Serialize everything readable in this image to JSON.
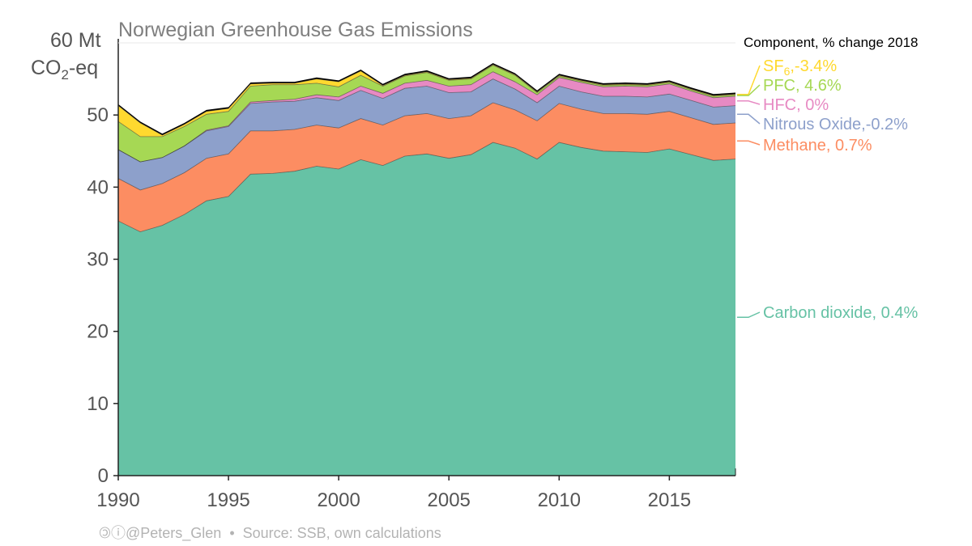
{
  "chart_data": {
    "type": "area",
    "stacked": true,
    "title": "Norwegian Greenhouse Gas Emissions",
    "ylabel_line1": "60 Mt",
    "ylabel_line2_main": "CO",
    "ylabel_line2_sub": "2",
    "ylabel_line2_end": "-eq",
    "ylim": [
      0,
      60
    ],
    "yticks": [
      "0",
      "10",
      "20",
      "30",
      "40",
      "50"
    ],
    "xlim": [
      1990,
      2018
    ],
    "xticks": [
      "1990",
      "1995",
      "2000",
      "2005",
      "2010",
      "2015"
    ],
    "x": [
      1990,
      1991,
      1992,
      1993,
      1994,
      1995,
      1996,
      1997,
      1998,
      1999,
      2000,
      2001,
      2002,
      2003,
      2004,
      2005,
      2006,
      2007,
      2008,
      2009,
      2010,
      2011,
      2012,
      2013,
      2014,
      2015,
      2016,
      2017,
      2018
    ],
    "series": [
      {
        "key": "co2",
        "name": "Carbon dioxide",
        "color": "#66c2a5",
        "values": [
          35.3,
          33.8,
          34.7,
          36.2,
          38.1,
          38.7,
          41.8,
          41.9,
          42.2,
          42.9,
          42.5,
          43.8,
          43.0,
          44.3,
          44.6,
          44.0,
          44.5,
          46.2,
          45.4,
          43.9,
          46.2,
          45.5,
          45.0,
          44.9,
          44.8,
          45.3,
          44.5,
          43.7,
          43.9
        ]
      },
      {
        "key": "ch4",
        "name": "Methane",
        "color": "#fc8d62",
        "values": [
          5.9,
          5.8,
          5.8,
          5.8,
          5.9,
          5.9,
          6.0,
          5.9,
          5.8,
          5.7,
          5.7,
          5.7,
          5.6,
          5.6,
          5.6,
          5.5,
          5.4,
          5.5,
          5.3,
          5.3,
          5.4,
          5.3,
          5.2,
          5.3,
          5.3,
          5.2,
          5.1,
          5.0,
          5.0
        ]
      },
      {
        "key": "n2o",
        "name": "Nitrous Oxide",
        "color": "#8da0cb",
        "values": [
          4.0,
          3.9,
          3.6,
          3.7,
          3.8,
          3.8,
          3.8,
          4.0,
          3.9,
          3.8,
          3.8,
          3.9,
          3.7,
          3.8,
          3.8,
          3.6,
          3.3,
          3.3,
          2.9,
          2.5,
          2.4,
          2.4,
          2.4,
          2.4,
          2.4,
          2.4,
          2.4,
          2.4,
          2.4
        ]
      },
      {
        "key": "hfc",
        "name": "HFC",
        "color": "#e78ac3",
        "values": [
          0.0,
          0.0,
          0.0,
          0.0,
          0.1,
          0.1,
          0.2,
          0.2,
          0.3,
          0.4,
          0.5,
          0.6,
          0.7,
          0.7,
          0.8,
          0.9,
          1.0,
          1.0,
          1.0,
          1.1,
          1.2,
          1.3,
          1.3,
          1.4,
          1.4,
          1.4,
          1.3,
          1.3,
          1.3
        ]
      },
      {
        "key": "pfc",
        "name": "PFC",
        "color": "#a6d854",
        "values": [
          3.9,
          3.5,
          2.9,
          2.7,
          2.2,
          2.0,
          2.2,
          2.2,
          2.0,
          1.6,
          1.4,
          1.5,
          1.0,
          1.0,
          1.1,
          0.8,
          0.8,
          0.9,
          0.9,
          0.3,
          0.2,
          0.2,
          0.2,
          0.2,
          0.2,
          0.2,
          0.2,
          0.2,
          0.2
        ]
      },
      {
        "key": "sf6",
        "name": "SF",
        "name_sub": "6",
        "color": "#ffd92f",
        "values": [
          2.2,
          1.9,
          0.2,
          0.3,
          0.4,
          0.4,
          0.3,
          0.2,
          0.2,
          0.6,
          0.7,
          0.6,
          0.1,
          0.1,
          0.1,
          0.1,
          0.1,
          0.1,
          0.1,
          0.1,
          0.1,
          0.1,
          0.1,
          0.1,
          0.1,
          0.1,
          0.1,
          0.1,
          0.1
        ]
      },
      {
        "key": "top",
        "name": "",
        "color": "#000000",
        "values": [
          0.2,
          0.2,
          0.2,
          0.2,
          0.2,
          0.2,
          0.2,
          0.2,
          0.2,
          0.2,
          0.2,
          0.2,
          0.2,
          0.2,
          0.2,
          0.2,
          0.2,
          0.2,
          0.2,
          0.2,
          0.2,
          0.2,
          0.2,
          0.2,
          0.2,
          0.2,
          0.2,
          0.2,
          0.2
        ]
      }
    ],
    "legend": {
      "heading": "Component, % change 2018",
      "placement": "right",
      "items": [
        {
          "key": "sf6",
          "label_main": "SF",
          "label_sub": "6",
          "label_rest": ",-3.4%",
          "color": "#ffd92f"
        },
        {
          "key": "pfc",
          "label_main": "PFC, 4.6%",
          "label_sub": "",
          "label_rest": "",
          "color": "#a6d854"
        },
        {
          "key": "hfc",
          "label_main": "HFC,   0%",
          "label_sub": "",
          "label_rest": "",
          "color": "#e78ac3"
        },
        {
          "key": "n2o",
          "label_main": "Nitrous Oxide,-0.2%",
          "label_sub": "",
          "label_rest": "",
          "color": "#8da0cb"
        },
        {
          "key": "ch4",
          "label_main": "Methane, 0.7%",
          "label_sub": "",
          "label_rest": "",
          "color": "#fc8d62"
        },
        {
          "key": "co2",
          "label_main": "Carbon dioxide, 0.4%",
          "label_sub": "",
          "label_rest": "",
          "color": "#66c2a5"
        }
      ]
    },
    "grid": false
  },
  "footer": {
    "license_icons": "🄯ⓘ",
    "author": "@Peters_Glen",
    "separator": "•",
    "source": "Source: SSB, own calculations"
  }
}
